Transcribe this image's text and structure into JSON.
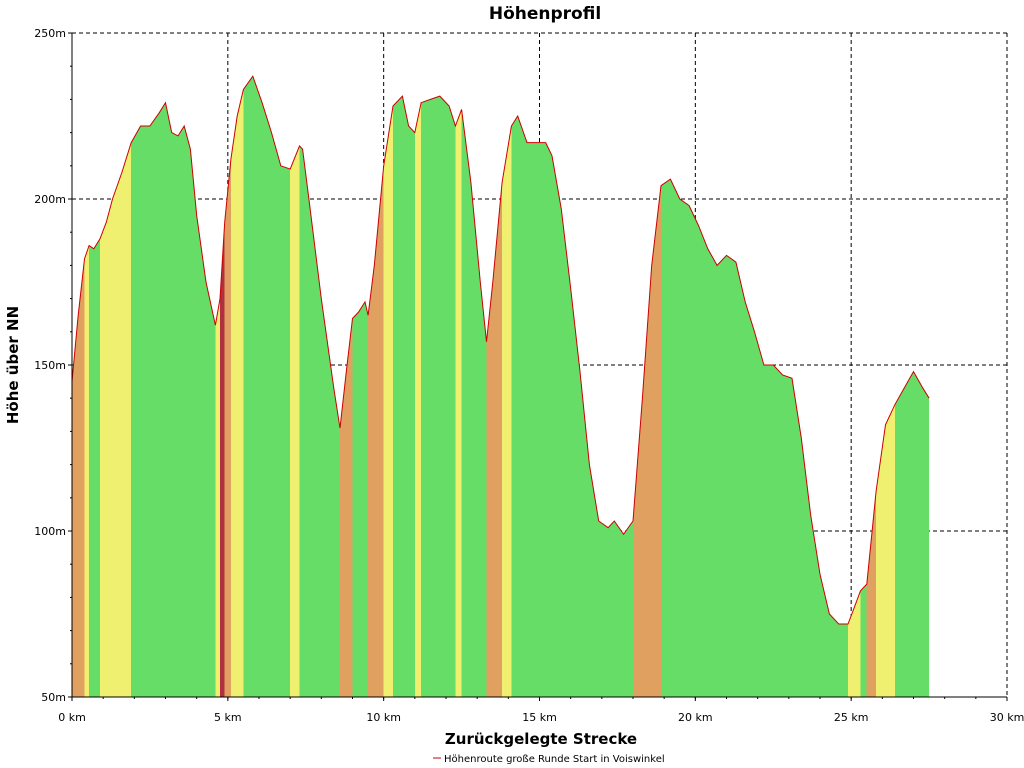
{
  "chart_data": {
    "type": "area",
    "title": "Höhenprofil",
    "xlabel": "Zurückgelegte Strecke",
    "ylabel": "Höhe über NN",
    "xlim": [
      0,
      30
    ],
    "ylim": [
      50,
      250
    ],
    "x_ticks": [
      0,
      5,
      10,
      15,
      20,
      25,
      30
    ],
    "x_tick_labels": [
      "0 km",
      "5 km",
      "10 km",
      "15 km",
      "20 km",
      "25 km",
      "30 km"
    ],
    "y_ticks": [
      50,
      100,
      150,
      200,
      250
    ],
    "y_tick_labels": [
      "50m",
      "100m",
      "150m",
      "200m",
      "250m"
    ],
    "grid": true,
    "legend_position": "bottom-center",
    "series": [
      {
        "name": "Höhenroute große Runde Start in Voiswinkel",
        "color": "#cc0000",
        "x": [
          0,
          0.2,
          0.4,
          0.55,
          0.7,
          0.9,
          1.1,
          1.3,
          1.6,
          1.9,
          2.2,
          2.5,
          2.8,
          3.0,
          3.2,
          3.4,
          3.6,
          3.8,
          4.0,
          4.3,
          4.6,
          4.75,
          4.9,
          5.1,
          5.3,
          5.5,
          5.8,
          6.1,
          6.4,
          6.7,
          7.0,
          7.3,
          7.4,
          7.6,
          8.0,
          8.4,
          8.6,
          8.8,
          9.0,
          9.2,
          9.4,
          9.5,
          9.7,
          10.0,
          10.3,
          10.6,
          10.8,
          11.0,
          11.2,
          11.5,
          11.8,
          12.1,
          12.3,
          12.5,
          12.8,
          13.1,
          13.3,
          13.5,
          13.8,
          14.1,
          14.3,
          14.6,
          14.9,
          15.2,
          15.4,
          15.7,
          16.0,
          16.3,
          16.6,
          16.9,
          17.2,
          17.4,
          17.7,
          18.0,
          18.3,
          18.6,
          18.9,
          19.2,
          19.5,
          19.8,
          20.1,
          20.4,
          20.7,
          21.0,
          21.3,
          21.6,
          21.9,
          22.2,
          22.5,
          22.8,
          23.1,
          23.4,
          23.7,
          24.0,
          24.3,
          24.6,
          24.9,
          25.1,
          25.3,
          25.5,
          25.8,
          26.1,
          26.4,
          26.7,
          27.0,
          27.3,
          27.5
        ],
        "values": [
          145,
          165,
          182,
          186,
          185,
          188,
          193,
          200,
          208,
          217,
          222,
          222,
          226,
          229,
          220,
          219,
          222,
          215,
          195,
          175,
          162,
          170,
          193,
          212,
          225,
          233,
          237,
          229,
          220,
          210,
          209,
          216,
          215,
          200,
          170,
          143,
          131,
          148,
          164,
          166,
          169,
          165,
          180,
          210,
          228,
          231,
          222,
          220,
          229,
          230,
          231,
          228,
          222,
          227,
          205,
          175,
          157,
          175,
          205,
          222,
          225,
          217,
          217,
          217,
          213,
          197,
          173,
          148,
          120,
          103,
          101,
          103,
          99,
          103,
          140,
          180,
          204,
          206,
          200,
          198,
          192,
          185,
          180,
          183,
          181,
          169,
          160,
          150,
          150,
          147,
          146,
          128,
          105,
          87,
          75,
          72,
          72,
          77,
          82,
          84,
          112,
          132,
          138,
          143,
          148,
          143,
          140
        ]
      }
    ]
  }
}
